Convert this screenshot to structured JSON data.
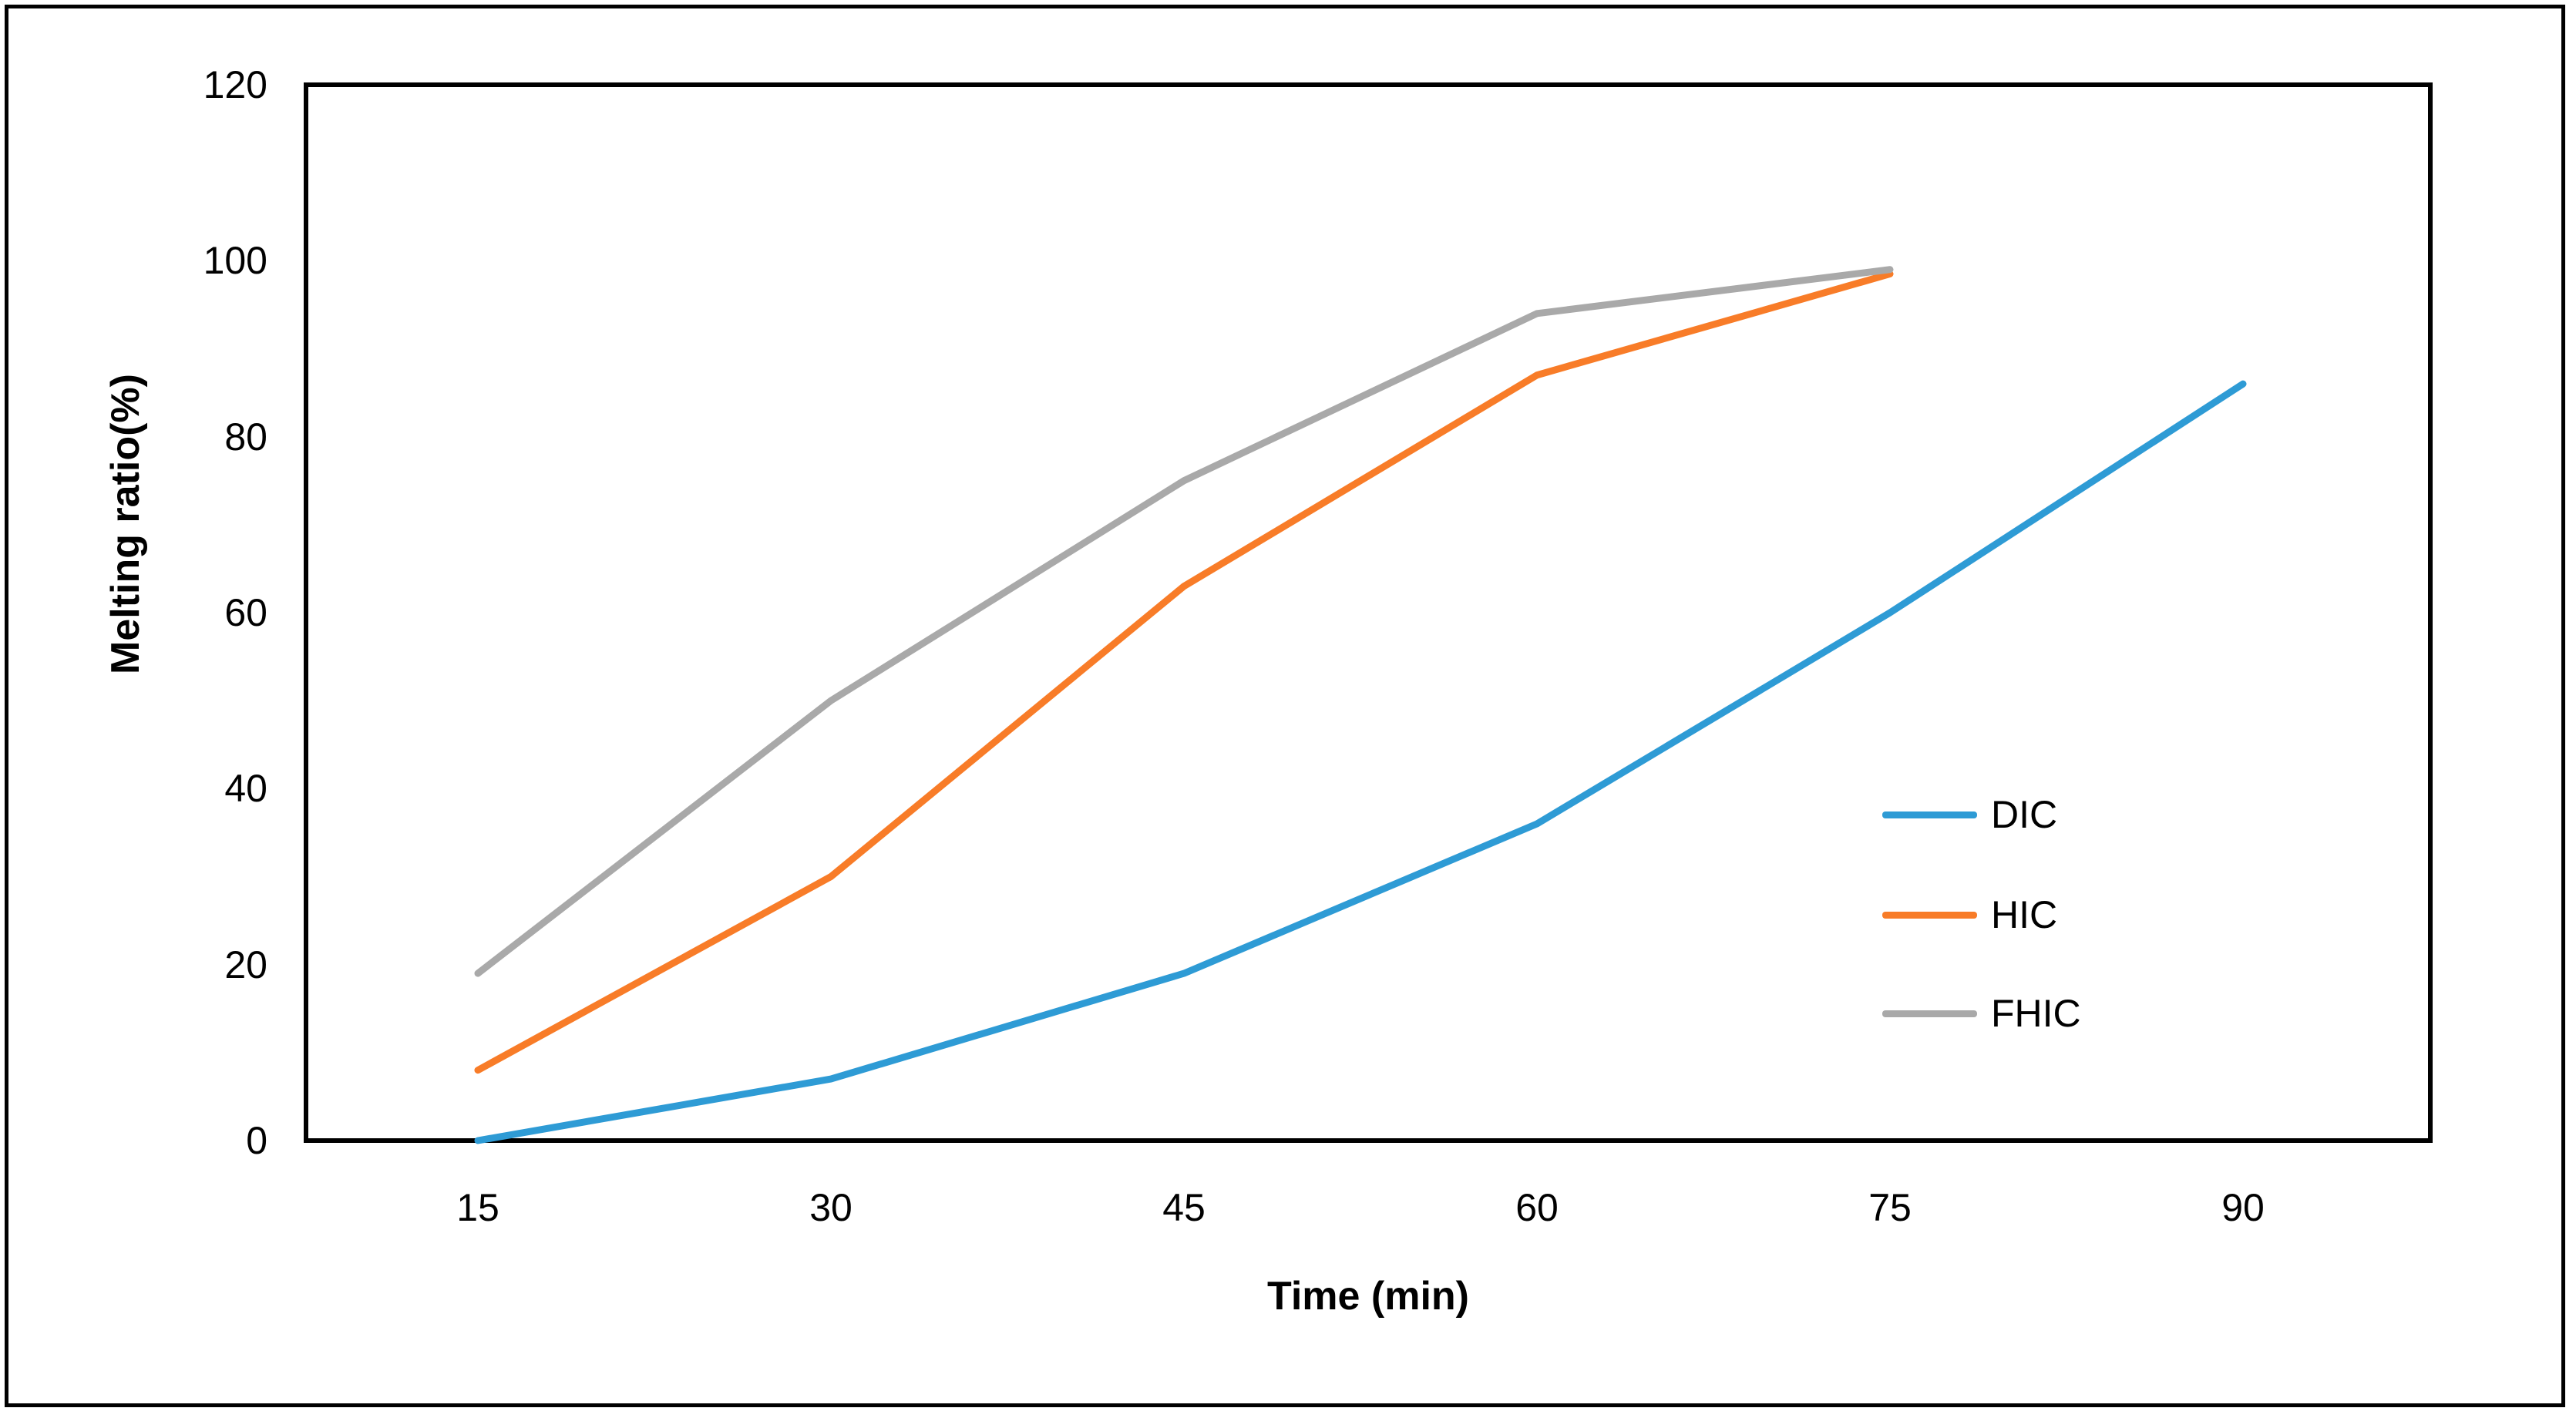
{
  "figure": {
    "background": "#ffffff",
    "border_color": "#000000",
    "axis_color": "#000000",
    "text_color": "#000000"
  },
  "chart_data": {
    "type": "line",
    "title": "",
    "xlabel": "Time (min)",
    "ylabel": "Melting ratio(%)",
    "categories": [
      15,
      30,
      45,
      60,
      75,
      90
    ],
    "x_tick_labels": [
      "15",
      "30",
      "45",
      "60",
      "75",
      "90"
    ],
    "y_ticks": [
      0,
      20,
      40,
      60,
      80,
      100,
      120
    ],
    "y_tick_labels": [
      "0",
      "20",
      "40",
      "60",
      "80",
      "100",
      "120"
    ],
    "ylim": [
      0,
      120
    ],
    "grid": false,
    "legend_position": "middle-right",
    "series": [
      {
        "name": "DIC",
        "color": "#2E9BD5",
        "values": [
          0,
          7,
          19,
          36,
          60,
          86
        ]
      },
      {
        "name": "HIC",
        "color": "#F87C28",
        "values": [
          8,
          30,
          63,
          87,
          98.5,
          null
        ]
      },
      {
        "name": "FHIC",
        "color": "#A9A9A9",
        "values": [
          19,
          50,
          75,
          94,
          99,
          null
        ]
      }
    ]
  }
}
